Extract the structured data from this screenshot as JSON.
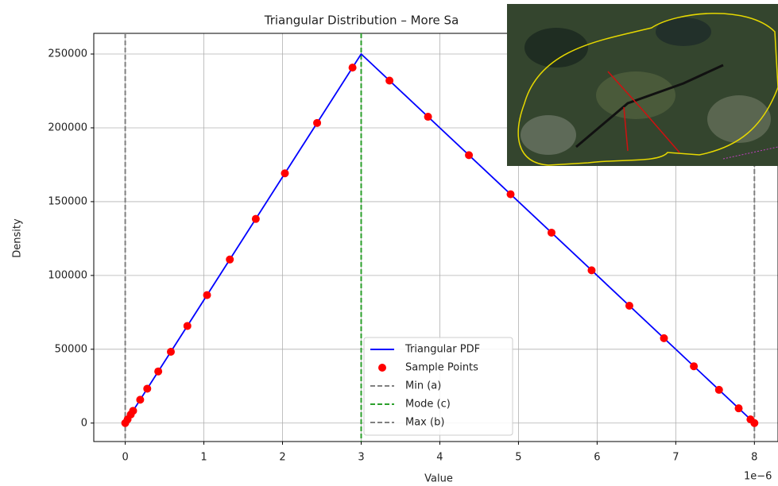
{
  "chart_data": {
    "type": "line",
    "title": "Triangular Distribution – More Sa",
    "xlabel": "Value",
    "ylabel": "Density",
    "x_offset_label": "1e−6",
    "xlim": [
      -0.4,
      8.3
    ],
    "ylim": [
      -12500,
      264000
    ],
    "xticks": [
      0,
      1,
      2,
      3,
      4,
      5,
      6,
      7,
      8
    ],
    "yticks": [
      0,
      50000,
      100000,
      150000,
      200000,
      250000
    ],
    "grid": true,
    "legend": "lower center",
    "series": [
      {
        "name": "Triangular PDF",
        "color": "#0000ff",
        "style": "line",
        "x": [
          0,
          3,
          8
        ],
        "values": [
          0,
          250000,
          0
        ]
      },
      {
        "name": "Sample Points",
        "color": "#ff0000",
        "style": "points",
        "x": [
          0,
          0.03,
          0.07,
          0.1,
          0.19,
          0.28,
          0.42,
          0.58,
          0.79,
          1.04,
          1.33,
          1.66,
          2.03,
          2.44,
          2.89,
          3.36,
          3.85,
          4.37,
          4.9,
          5.42,
          5.93,
          6.41,
          6.85,
          7.23,
          7.55,
          7.8,
          7.95,
          8.0
        ],
        "values": [
          0,
          2500,
          5800,
          8300,
          15800,
          23300,
          35000,
          48300,
          65800,
          86700,
          110800,
          138300,
          169200,
          203300,
          240800,
          232000,
          207500,
          181500,
          155000,
          129000,
          103500,
          79500,
          57500,
          38500,
          22500,
          10000,
          2500,
          0
        ]
      }
    ],
    "vlines": [
      {
        "name": "Min (a)",
        "value": 0,
        "color": "#808080"
      },
      {
        "name": "Mode (c)",
        "value": 3,
        "color": "#2ca02c"
      },
      {
        "name": "Max (b)",
        "value": 8,
        "color": "#808080"
      }
    ]
  }
}
